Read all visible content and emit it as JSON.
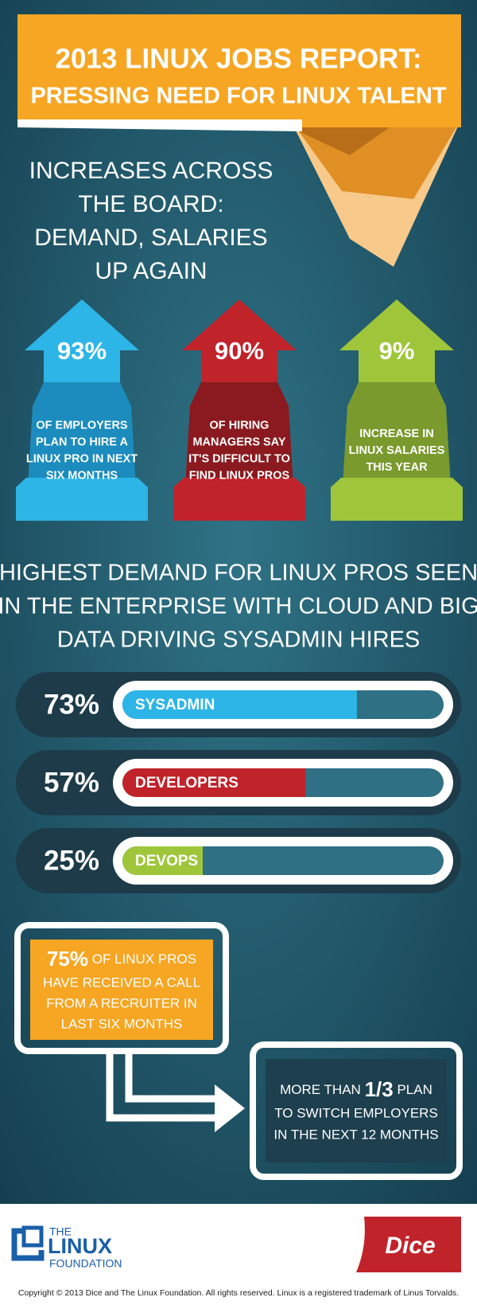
{
  "header": {
    "title_line1": "2013 LINUX JOBS REPORT:",
    "title_line2": "PRESSING NEED FOR LINUX TALENT"
  },
  "intro": {
    "lines": [
      "INCREASES ACROSS",
      "THE BOARD:",
      "DEMAND, SALARIES",
      "UP AGAIN"
    ]
  },
  "stats": [
    {
      "value_label": "93%",
      "text": [
        "OF EMPLOYERS",
        "PLAN TO HIRE A",
        "LINUX PRO IN NEXT",
        "SIX MONTHS"
      ],
      "color": "#2eb5e7",
      "dark_color": "#1b8cbd"
    },
    {
      "value_label": "90%",
      "text": [
        "OF HIRING",
        "MANAGERS SAY",
        "IT'S DIFFICULT TO",
        "FIND LINUX PROS"
      ],
      "color": "#c1232b",
      "dark_color": "#8a1a1f"
    },
    {
      "value_label": "9%",
      "text": [
        "INCREASE IN",
        "LINUX SALARIES",
        "THIS YEAR"
      ],
      "color": "#9fc63b",
      "dark_color": "#7b9a2d"
    }
  ],
  "demand": {
    "title": [
      "HIGHEST DEMAND FOR LINUX PROS SEEN",
      "IN THE ENTERPRISE WITH CLOUD AND BIG",
      "DATA DRIVING SYSADMIN HIRES"
    ],
    "xlim": [
      0,
      100
    ],
    "bars": [
      {
        "name": "SYSADMIN",
        "value": 73,
        "value_label": "73%",
        "color": "#2eb5e7"
      },
      {
        "name": "DEVELOPERS",
        "value": 57,
        "value_label": "57%",
        "color": "#c1232b"
      },
      {
        "name": "DEVOPS",
        "value": 25,
        "value_label": "25%",
        "color": "#9fc63b"
      }
    ]
  },
  "recruiter": {
    "value_label": "75%",
    "line1_rest": "OF LINUX PROS",
    "lines": [
      "HAVE RECEIVED A CALL",
      "FROM A RECRUITER IN",
      "LAST SIX MONTHS"
    ]
  },
  "switch": {
    "prefix": "MORE THAN",
    "value_label": "1/3",
    "suffix": "PLAN",
    "lines": [
      "TO SWITCH EMPLOYERS",
      "IN THE NEXT 12 MONTHS"
    ]
  },
  "footer": {
    "logo_the": "THE",
    "logo_linux": "LINUX",
    "logo_foundation": "FOUNDATION",
    "dice": "Dice",
    "copyright": "Copyright © 2013 Dice and The Linux Foundation. All rights reserved. Linux is a registered trademark of Linus Torvalds."
  }
}
